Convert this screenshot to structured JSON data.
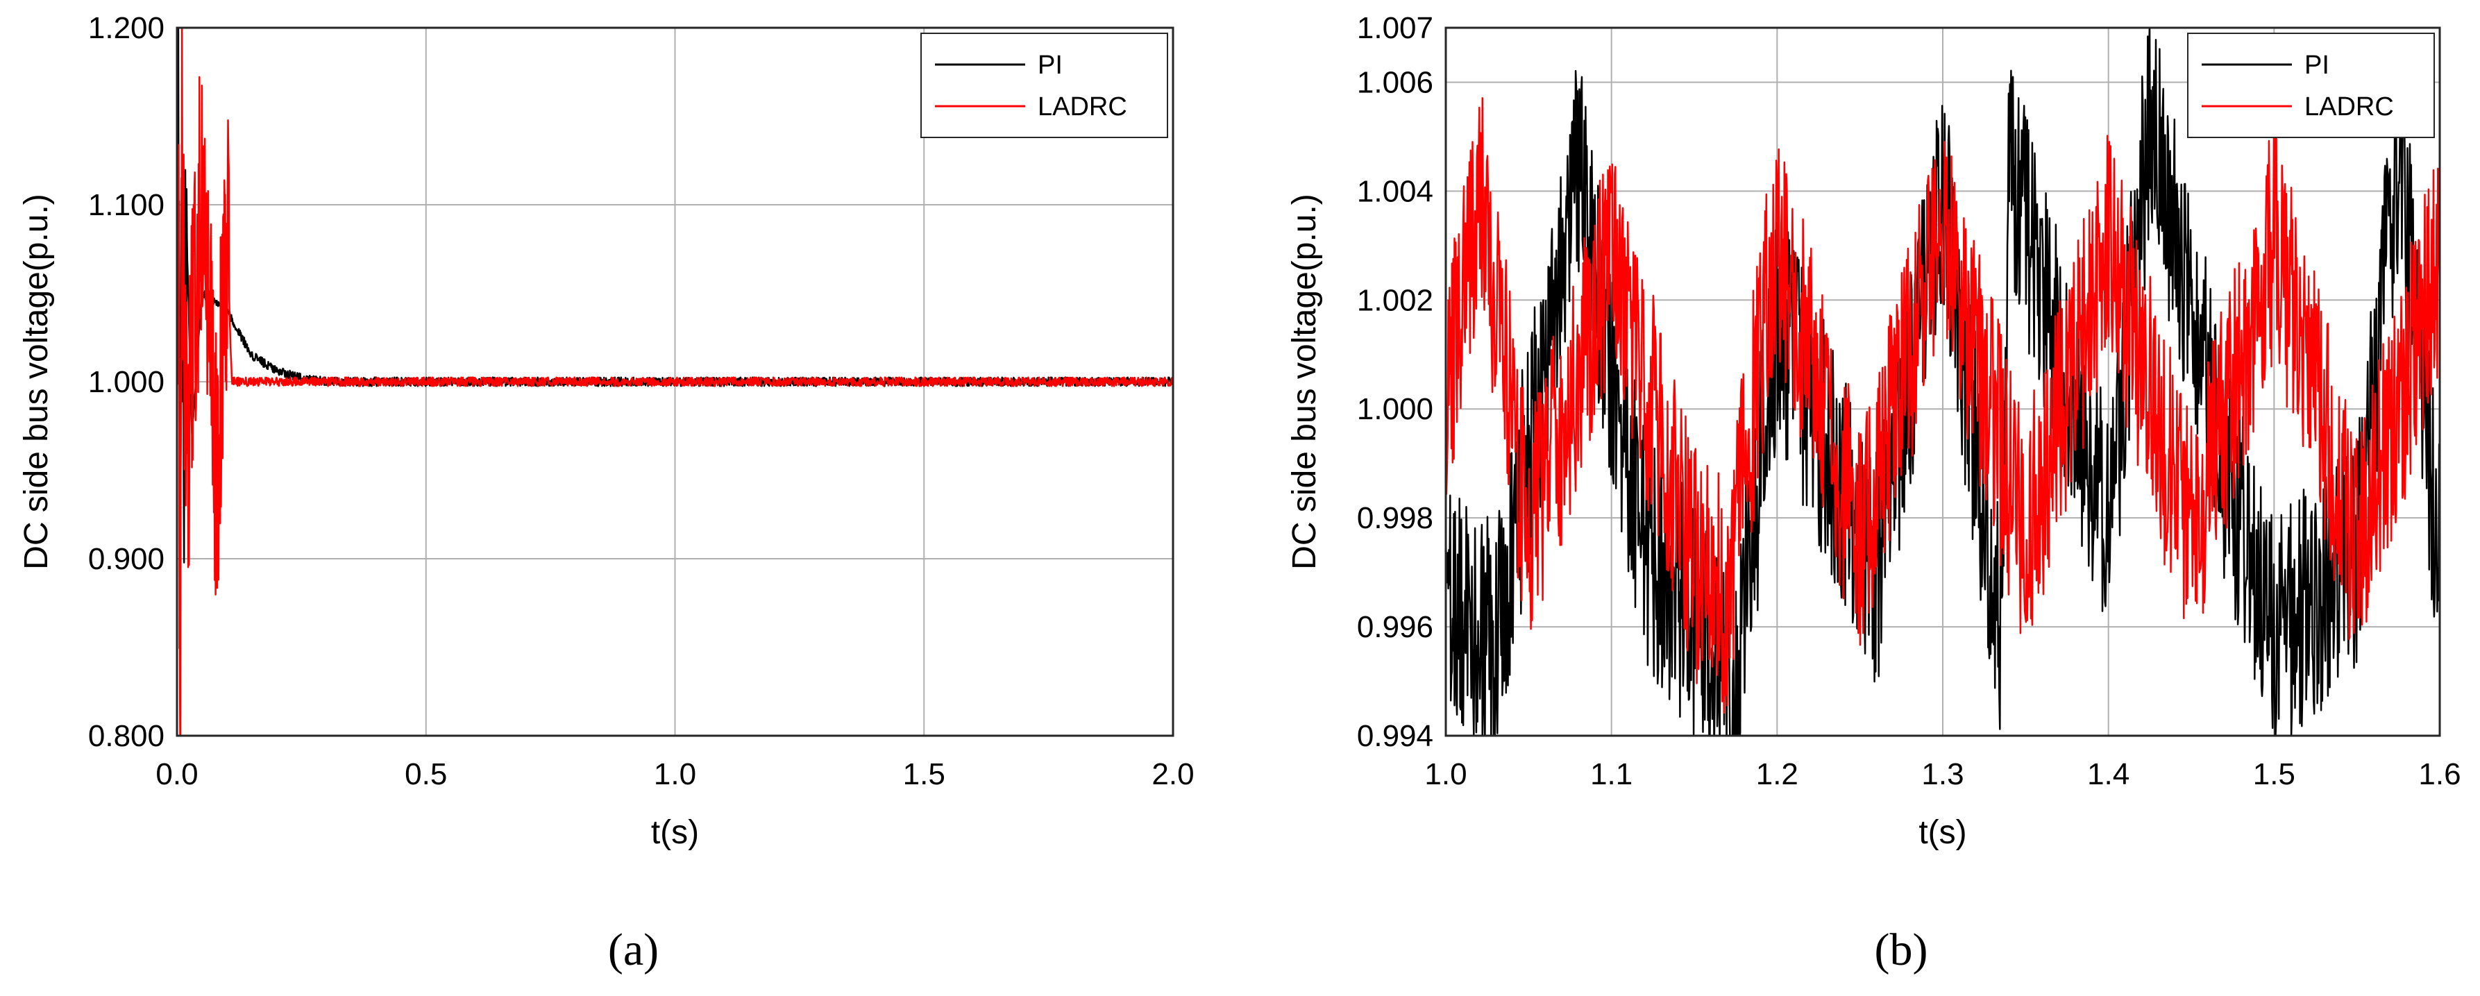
{
  "chart_data": [
    {
      "type": "line",
      "panel_label": "(a)",
      "xlabel": "t(s)",
      "ylabel": "DC side bus voltage(p.u.)",
      "xlim": [
        0.0,
        2.0
      ],
      "ylim": [
        0.8,
        1.2
      ],
      "xticks": [
        0.0,
        0.5,
        1.0,
        1.5,
        2.0
      ],
      "xtick_labels": [
        "0.0",
        "0.5",
        "1.0",
        "1.5",
        "2.0"
      ],
      "yticks": [
        0.8,
        0.9,
        1.0,
        1.1,
        1.2
      ],
      "ytick_labels": [
        "0.800",
        "0.900",
        "1.000",
        "1.100",
        "1.200"
      ],
      "grid": true,
      "legend_position": "top-right",
      "series": [
        {
          "name": "PI",
          "color": "#000000",
          "x": [
            0.0,
            0.003,
            0.006,
            0.01,
            0.015,
            0.02,
            0.03,
            0.05,
            0.08,
            0.1,
            0.12,
            0.15,
            0.2,
            0.25,
            0.3,
            0.5,
            1.0,
            1.5,
            2.0
          ],
          "y": [
            1.0,
            1.17,
            0.83,
            1.12,
            0.96,
            1.08,
            0.97,
            1.05,
            1.045,
            1.04,
            1.03,
            1.015,
            1.006,
            1.002,
            1.0,
            1.0,
            1.0,
            1.0,
            1.0
          ]
        },
        {
          "name": "LADRC",
          "color": "#ff0000",
          "x": [
            0.0,
            0.003,
            0.006,
            0.01,
            0.02,
            0.05,
            0.08,
            0.1,
            0.11,
            0.15,
            0.5,
            1.0,
            1.5,
            2.0
          ],
          "y": [
            1.0,
            1.16,
            0.8,
            1.12,
            0.955,
            1.11,
            0.94,
            1.09,
            1.0,
            1.0,
            1.0,
            1.0,
            1.0,
            1.0
          ]
        }
      ]
    },
    {
      "type": "line",
      "panel_label": "(b)",
      "xlabel": "t(s)",
      "ylabel": "DC side bus voltage(p.u.)",
      "xlim": [
        1.0,
        1.6
      ],
      "ylim": [
        0.994,
        1.007
      ],
      "xticks": [
        1.0,
        1.1,
        1.2,
        1.3,
        1.4,
        1.5,
        1.6
      ],
      "xtick_labels": [
        "1.0",
        "1.1",
        "1.2",
        "1.3",
        "1.4",
        "1.5",
        "1.6"
      ],
      "yticks": [
        0.994,
        0.996,
        0.998,
        1.0,
        1.002,
        1.004,
        1.006,
        1.007
      ],
      "ytick_labels": [
        "0.994",
        "0.996",
        "0.998",
        "1.000",
        "1.002",
        "1.004",
        "1.006",
        "1.007"
      ],
      "grid": true,
      "legend_position": "top-right",
      "series": [
        {
          "name": "PI",
          "color": "#000000",
          "x": [
            1.0,
            1.03,
            1.08,
            1.12,
            1.175,
            1.2,
            1.26,
            1.3,
            1.335,
            1.34,
            1.4,
            1.425,
            1.47,
            1.5,
            1.55,
            1.575,
            1.6
          ],
          "y": [
            0.9965,
            0.9958,
            1.0043,
            0.9975,
            0.995,
            1.0016,
            0.997,
            1.004,
            0.9957,
            1.0045,
            0.9978,
            1.0053,
            0.999,
            0.9959,
            0.9972,
            1.0048,
            0.9972
          ]
        },
        {
          "name": "LADRC",
          "color": "#ff0000",
          "x": [
            1.0,
            1.02,
            1.05,
            1.1,
            1.15,
            1.17,
            1.2,
            1.25,
            1.3,
            1.35,
            1.4,
            1.45,
            1.5,
            1.55,
            1.6
          ],
          "y": [
            1.0,
            1.0041,
            0.9976,
            1.0028,
            0.9972,
            0.9965,
            1.0032,
            0.9975,
            1.0033,
            0.9976,
            1.003,
            0.9976,
            1.0031,
            0.9974,
            1.0028
          ]
        }
      ]
    }
  ]
}
